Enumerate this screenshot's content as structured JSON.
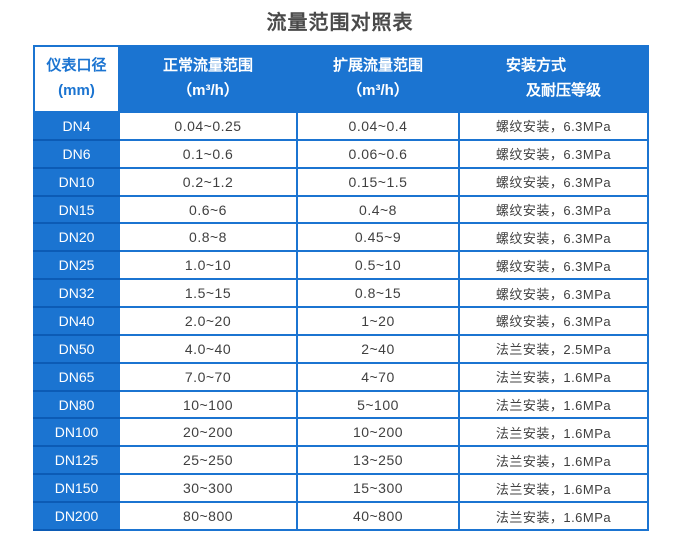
{
  "title": "流量范围对照表",
  "colors": {
    "primary_blue": "#1b74d1",
    "dark_blue_separator": "#0c5bb5",
    "header_text": "#ffffff",
    "cell_text": "#404040",
    "title_text": "#4a4a4a"
  },
  "table_header": {
    "col1": {
      "line1": "仪表口径",
      "line2": "(mm)"
    },
    "col2": {
      "line1": "正常流量范围",
      "line2": "（m³/h）"
    },
    "col3": {
      "line1": "扩展流量范围",
      "line2": "（m³/h）"
    },
    "col4": {
      "line1": "安装方式",
      "line2": "及耐压等级"
    }
  },
  "chart_data": {
    "type": "table",
    "title": "流量范围对照表",
    "columns": [
      "仪表口径 (mm)",
      "正常流量范围（m³/h）",
      "扩展流量范围（m³/h）",
      "安装方式及耐压等级"
    ],
    "rows": [
      [
        "DN4",
        "0.04~0.25",
        "0.04~0.4",
        "螺纹安装，6.3MPa"
      ],
      [
        "DN6",
        "0.1~0.6",
        "0.06~0.6",
        "螺纹安装，6.3MPa"
      ],
      [
        "DN10",
        "0.2~1.2",
        "0.15~1.5",
        "螺纹安装，6.3MPa"
      ],
      [
        "DN15",
        "0.6~6",
        "0.4~8",
        "螺纹安装，6.3MPa"
      ],
      [
        "DN20",
        "0.8~8",
        "0.45~9",
        "螺纹安装，6.3MPa"
      ],
      [
        "DN25",
        "1.0~10",
        "0.5~10",
        "螺纹安装，6.3MPa"
      ],
      [
        "DN32",
        "1.5~15",
        "0.8~15",
        "螺纹安装，6.3MPa"
      ],
      [
        "DN40",
        "2.0~20",
        "1~20",
        "螺纹安装，6.3MPa"
      ],
      [
        "DN50",
        "4.0~40",
        "2~40",
        "法兰安装，2.5MPa"
      ],
      [
        "DN65",
        "7.0~70",
        "4~70",
        "法兰安装，1.6MPa"
      ],
      [
        "DN80",
        "10~100",
        "5~100",
        "法兰安装，1.6MPa"
      ],
      [
        "DN100",
        "20~200",
        "10~200",
        "法兰安装，1.6MPa"
      ],
      [
        "DN125",
        "25~250",
        "13~250",
        "法兰安装，1.6MPa"
      ],
      [
        "DN150",
        "30~300",
        "15~300",
        "法兰安装，1.6MPa"
      ],
      [
        "DN200",
        "80~800",
        "40~800",
        "法兰安装，1.6MPa"
      ]
    ]
  }
}
